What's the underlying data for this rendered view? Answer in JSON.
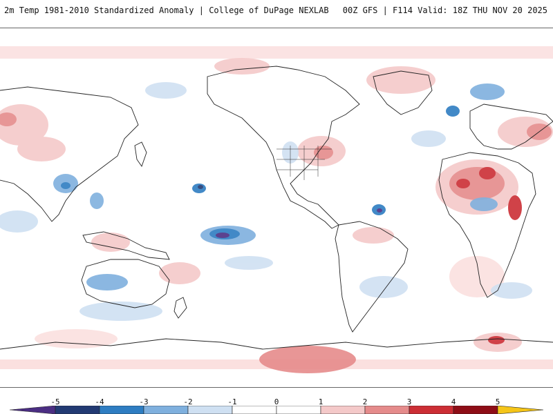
{
  "header": {
    "title": "2m Temp 1981-2010 Standardized Anomaly | College of DuPage NEXLAB",
    "run_info": "00Z GFS | F114 Valid: 18Z THU NOV 20 2025"
  },
  "map": {
    "description_name": "global-temperature-anomaly-map",
    "ocean_color": "#ffffff",
    "coastline_color": "#222222"
  },
  "legend": {
    "ticks": [
      "-5",
      "-4",
      "-3",
      "-2",
      "-1",
      "0",
      "1",
      "2",
      "3",
      "4",
      "5"
    ],
    "colors": [
      "#4b2e83",
      "#223a73",
      "#2e7dc2",
      "#7fb0de",
      "#cfe0f2",
      "#ffffff",
      "#ffffff",
      "#f4c9c9",
      "#e58b8b",
      "#cc2e35",
      "#8e0d16",
      "#f5c518"
    ]
  }
}
